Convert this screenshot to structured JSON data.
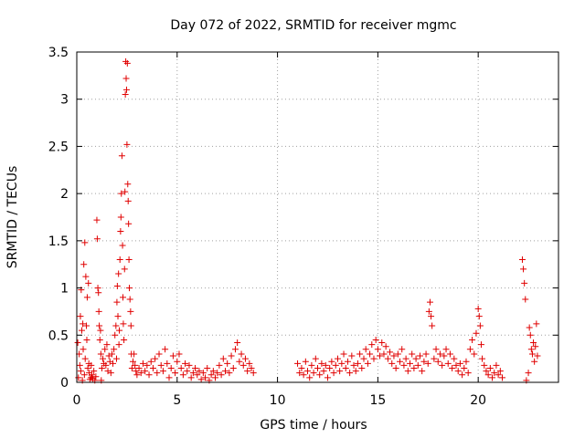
{
  "chart_data": {
    "type": "scatter",
    "title": "Day 072 of 2022, SRMTID for receiver mgmc",
    "xlabel": "GPS time / hours",
    "ylabel": "SRMTID / TECUs",
    "xlim": [
      0,
      24
    ],
    "ylim": [
      0,
      3.5
    ],
    "xticks": [
      0,
      5,
      10,
      15,
      20
    ],
    "xtick_labels": [
      "0",
      "5",
      "10",
      "15",
      "20"
    ],
    "yticks": [
      0,
      0.5,
      1,
      1.5,
      2,
      2.5,
      3,
      3.5
    ],
    "ytick_labels": [
      "0",
      "0.5",
      "1",
      "1.5",
      "2",
      "2.5",
      "3",
      "3.5"
    ],
    "grid": true,
    "marker": "+",
    "color": "#e00000",
    "series": [
      {
        "name": "SRMTID",
        "points": [
          [
            0.05,
            0.42
          ],
          [
            0.08,
            0.05
          ],
          [
            0.12,
            0.3
          ],
          [
            0.15,
            0.18
          ],
          [
            0.18,
            0.7
          ],
          [
            0.2,
            0.12
          ],
          [
            0.22,
            0.98
          ],
          [
            0.25,
            0.55
          ],
          [
            0.28,
            0.02
          ],
          [
            0.3,
            0.62
          ],
          [
            0.32,
            0.35
          ],
          [
            0.35,
            1.25
          ],
          [
            0.38,
            0.08
          ],
          [
            0.4,
            1.48
          ],
          [
            0.42,
            0.25
          ],
          [
            0.45,
            1.12
          ],
          [
            0.48,
            0.6
          ],
          [
            0.5,
            0.45
          ],
          [
            0.52,
            0.9
          ],
          [
            0.55,
            0.15
          ],
          [
            0.58,
            1.05
          ],
          [
            0.6,
            0.2
          ],
          [
            0.62,
            0.1
          ],
          [
            0.65,
            0.03
          ],
          [
            0.7,
            0.05
          ],
          [
            0.72,
            0.18
          ],
          [
            0.75,
            0.08
          ],
          [
            0.8,
            0.04
          ],
          [
            0.85,
            0.12
          ],
          [
            0.9,
            0.02
          ],
          [
            0.95,
            0.06
          ],
          [
            1.0,
            1.72
          ],
          [
            1.02,
            1.52
          ],
          [
            1.05,
            1.0
          ],
          [
            1.08,
            0.95
          ],
          [
            1.1,
            0.75
          ],
          [
            1.12,
            0.6
          ],
          [
            1.15,
            0.45
          ],
          [
            1.18,
            0.55
          ],
          [
            1.2,
            0.3
          ],
          [
            1.22,
            0.02
          ],
          [
            1.25,
            0.15
          ],
          [
            1.3,
            0.25
          ],
          [
            1.35,
            0.2
          ],
          [
            1.4,
            0.35
          ],
          [
            1.45,
            0.18
          ],
          [
            1.5,
            0.4
          ],
          [
            1.55,
            0.12
          ],
          [
            1.6,
            0.28
          ],
          [
            1.65,
            0.22
          ],
          [
            1.7,
            0.1
          ],
          [
            1.75,
            0.3
          ],
          [
            1.8,
            0.2
          ],
          [
            1.85,
            0.35
          ],
          [
            1.9,
            0.5
          ],
          [
            1.95,
            0.6
          ],
          [
            1.98,
            0.25
          ],
          [
            2.0,
            0.85
          ],
          [
            2.02,
            1.02
          ],
          [
            2.05,
            0.7
          ],
          [
            2.08,
            1.15
          ],
          [
            2.1,
            0.4
          ],
          [
            2.12,
            0.55
          ],
          [
            2.15,
            1.3
          ],
          [
            2.18,
            1.6
          ],
          [
            2.2,
            1.75
          ],
          [
            2.22,
            2.0
          ],
          [
            2.25,
            2.4
          ],
          [
            2.28,
            1.45
          ],
          [
            2.3,
            0.9
          ],
          [
            2.32,
            0.62
          ],
          [
            2.35,
            0.45
          ],
          [
            2.38,
            1.2
          ],
          [
            2.4,
            2.02
          ],
          [
            2.42,
            3.05
          ],
          [
            2.44,
            3.4
          ],
          [
            2.46,
            3.22
          ],
          [
            2.48,
            3.1
          ],
          [
            2.5,
            2.52
          ],
          [
            2.52,
            3.38
          ],
          [
            2.54,
            2.1
          ],
          [
            2.56,
            1.92
          ],
          [
            2.58,
            1.68
          ],
          [
            2.6,
            1.3
          ],
          [
            2.62,
            1.0
          ],
          [
            2.65,
            0.88
          ],
          [
            2.68,
            0.75
          ],
          [
            2.7,
            0.6
          ],
          [
            2.72,
            0.3
          ],
          [
            2.75,
            0.15
          ],
          [
            2.8,
            0.22
          ],
          [
            2.85,
            0.3
          ],
          [
            2.9,
            0.18
          ],
          [
            2.95,
            0.12
          ],
          [
            3.0,
            0.08
          ],
          [
            3.1,
            0.15
          ],
          [
            3.2,
            0.1
          ],
          [
            3.3,
            0.2
          ],
          [
            3.4,
            0.12
          ],
          [
            3.5,
            0.18
          ],
          [
            3.6,
            0.08
          ],
          [
            3.7,
            0.22
          ],
          [
            3.8,
            0.15
          ],
          [
            3.9,
            0.25
          ],
          [
            4.0,
            0.1
          ],
          [
            4.1,
            0.3
          ],
          [
            4.2,
            0.18
          ],
          [
            4.3,
            0.12
          ],
          [
            4.4,
            0.35
          ],
          [
            4.5,
            0.2
          ],
          [
            4.6,
            0.05
          ],
          [
            4.7,
            0.15
          ],
          [
            4.8,
            0.28
          ],
          [
            4.9,
            0.1
          ],
          [
            5.0,
            0.22
          ],
          [
            5.1,
            0.3
          ],
          [
            5.2,
            0.15
          ],
          [
            5.3,
            0.08
          ],
          [
            5.4,
            0.2
          ],
          [
            5.5,
            0.12
          ],
          [
            5.6,
            0.18
          ],
          [
            5.7,
            0.05
          ],
          [
            5.8,
            0.1
          ],
          [
            5.9,
            0.15
          ],
          [
            6.0,
            0.08
          ],
          [
            6.1,
            0.12
          ],
          [
            6.2,
            0.03
          ],
          [
            6.3,
            0.1
          ],
          [
            6.4,
            0.05
          ],
          [
            6.5,
            0.15
          ],
          [
            6.6,
            0.02
          ],
          [
            6.7,
            0.08
          ],
          [
            6.8,
            0.12
          ],
          [
            6.9,
            0.05
          ],
          [
            7.0,
            0.1
          ],
          [
            7.1,
            0.18
          ],
          [
            7.2,
            0.08
          ],
          [
            7.3,
            0.25
          ],
          [
            7.4,
            0.12
          ],
          [
            7.5,
            0.2
          ],
          [
            7.6,
            0.1
          ],
          [
            7.7,
            0.28
          ],
          [
            7.8,
            0.15
          ],
          [
            7.9,
            0.35
          ],
          [
            8.0,
            0.42
          ],
          [
            8.1,
            0.22
          ],
          [
            8.2,
            0.3
          ],
          [
            8.3,
            0.18
          ],
          [
            8.4,
            0.25
          ],
          [
            8.5,
            0.12
          ],
          [
            8.6,
            0.2
          ],
          [
            8.7,
            0.15
          ],
          [
            8.8,
            0.1
          ],
          [
            11.0,
            0.2
          ],
          [
            11.1,
            0.1
          ],
          [
            11.2,
            0.15
          ],
          [
            11.3,
            0.08
          ],
          [
            11.4,
            0.22
          ],
          [
            11.5,
            0.12
          ],
          [
            11.6,
            0.05
          ],
          [
            11.7,
            0.18
          ],
          [
            11.8,
            0.1
          ],
          [
            11.9,
            0.25
          ],
          [
            12.0,
            0.15
          ],
          [
            12.1,
            0.08
          ],
          [
            12.2,
            0.2
          ],
          [
            12.3,
            0.12
          ],
          [
            12.4,
            0.18
          ],
          [
            12.5,
            0.05
          ],
          [
            12.6,
            0.15
          ],
          [
            12.7,
            0.22
          ],
          [
            12.8,
            0.1
          ],
          [
            12.9,
            0.18
          ],
          [
            13.0,
            0.25
          ],
          [
            13.1,
            0.12
          ],
          [
            13.2,
            0.2
          ],
          [
            13.3,
            0.3
          ],
          [
            13.4,
            0.15
          ],
          [
            13.5,
            0.22
          ],
          [
            13.6,
            0.1
          ],
          [
            13.7,
            0.28
          ],
          [
            13.8,
            0.18
          ],
          [
            13.9,
            0.12
          ],
          [
            14.0,
            0.2
          ],
          [
            14.1,
            0.3
          ],
          [
            14.2,
            0.15
          ],
          [
            14.3,
            0.25
          ],
          [
            14.4,
            0.35
          ],
          [
            14.5,
            0.2
          ],
          [
            14.6,
            0.3
          ],
          [
            14.7,
            0.4
          ],
          [
            14.8,
            0.25
          ],
          [
            14.9,
            0.45
          ],
          [
            15.0,
            0.35
          ],
          [
            15.1,
            0.28
          ],
          [
            15.2,
            0.42
          ],
          [
            15.3,
            0.3
          ],
          [
            15.4,
            0.38
          ],
          [
            15.5,
            0.25
          ],
          [
            15.6,
            0.32
          ],
          [
            15.7,
            0.2
          ],
          [
            15.8,
            0.28
          ],
          [
            15.9,
            0.15
          ],
          [
            16.0,
            0.3
          ],
          [
            16.1,
            0.22
          ],
          [
            16.2,
            0.35
          ],
          [
            16.3,
            0.18
          ],
          [
            16.4,
            0.25
          ],
          [
            16.5,
            0.12
          ],
          [
            16.6,
            0.2
          ],
          [
            16.7,
            0.3
          ],
          [
            16.8,
            0.15
          ],
          [
            16.9,
            0.25
          ],
          [
            17.0,
            0.18
          ],
          [
            17.1,
            0.28
          ],
          [
            17.2,
            0.12
          ],
          [
            17.3,
            0.22
          ],
          [
            17.4,
            0.3
          ],
          [
            17.5,
            0.2
          ],
          [
            17.55,
            0.75
          ],
          [
            17.6,
            0.85
          ],
          [
            17.65,
            0.7
          ],
          [
            17.7,
            0.6
          ],
          [
            17.8,
            0.25
          ],
          [
            17.9,
            0.35
          ],
          [
            18.0,
            0.22
          ],
          [
            18.1,
            0.3
          ],
          [
            18.2,
            0.18
          ],
          [
            18.3,
            0.28
          ],
          [
            18.4,
            0.35
          ],
          [
            18.5,
            0.2
          ],
          [
            18.6,
            0.3
          ],
          [
            18.7,
            0.15
          ],
          [
            18.8,
            0.25
          ],
          [
            18.9,
            0.18
          ],
          [
            19.0,
            0.12
          ],
          [
            19.1,
            0.2
          ],
          [
            19.2,
            0.08
          ],
          [
            19.3,
            0.15
          ],
          [
            19.4,
            0.22
          ],
          [
            19.5,
            0.1
          ],
          [
            19.6,
            0.35
          ],
          [
            19.7,
            0.45
          ],
          [
            19.8,
            0.3
          ],
          [
            19.9,
            0.52
          ],
          [
            20.0,
            0.78
          ],
          [
            20.05,
            0.7
          ],
          [
            20.1,
            0.6
          ],
          [
            20.15,
            0.4
          ],
          [
            20.2,
            0.25
          ],
          [
            20.3,
            0.18
          ],
          [
            20.4,
            0.12
          ],
          [
            20.5,
            0.08
          ],
          [
            20.6,
            0.15
          ],
          [
            20.7,
            0.05
          ],
          [
            20.8,
            0.1
          ],
          [
            20.9,
            0.18
          ],
          [
            21.0,
            0.08
          ],
          [
            21.1,
            0.12
          ],
          [
            21.2,
            0.05
          ],
          [
            22.2,
            1.3
          ],
          [
            22.25,
            1.2
          ],
          [
            22.3,
            1.05
          ],
          [
            22.35,
            0.88
          ],
          [
            22.4,
            0.02
          ],
          [
            22.5,
            0.1
          ],
          [
            22.55,
            0.58
          ],
          [
            22.6,
            0.5
          ],
          [
            22.65,
            0.35
          ],
          [
            22.7,
            0.3
          ],
          [
            22.75,
            0.42
          ],
          [
            22.8,
            0.22
          ],
          [
            22.85,
            0.38
          ],
          [
            22.9,
            0.62
          ],
          [
            22.95,
            0.28
          ]
        ]
      }
    ]
  }
}
